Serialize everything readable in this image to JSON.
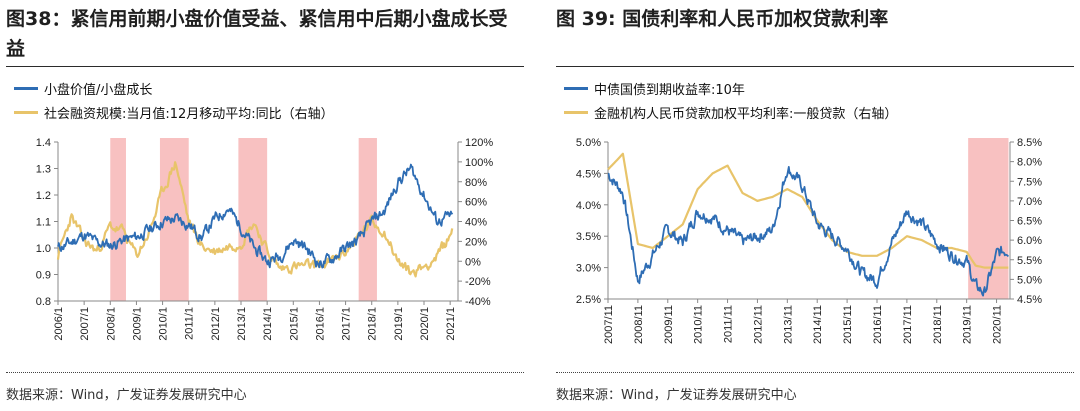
{
  "left": {
    "title": "图38：紧信用前期小盘价值受益、紧信用中后期小盘成长受益",
    "source": "数据来源：Wind，广发证券发展研究中心",
    "chart_data": {
      "type": "line",
      "legend": [
        {
          "name": "小盘价值/小盘成长",
          "color": "#2e6db4"
        },
        {
          "name": "社会融资规模:当月值:12月移动平均:同比（右轴）",
          "color": "#e8c46a"
        }
      ],
      "xticks": [
        "2006/1",
        "2007/1",
        "2008/1",
        "2009/1",
        "2010/1",
        "2011/1",
        "2012/1",
        "2013/1",
        "2014/1",
        "2015/1",
        "2016/1",
        "2017/1",
        "2018/1",
        "2019/1",
        "2020/1",
        "2021/1"
      ],
      "ylim": [
        0.8,
        1.4
      ],
      "yticks": [
        "0.8",
        "0.9",
        "1.0",
        "1.1",
        "1.2",
        "1.3",
        "1.4"
      ],
      "y2lim": [
        -40,
        120
      ],
      "y2ticks": [
        "-40%",
        "-20%",
        "0%",
        "20%",
        "40%",
        "60%",
        "80%",
        "100%",
        "120%"
      ],
      "shade": [
        [
          2008.0,
          2008.6
        ],
        [
          2009.9,
          2011.0
        ],
        [
          2012.9,
          2014.0
        ],
        [
          2017.5,
          2018.2
        ]
      ],
      "x": [
        2006,
        2006.5,
        2007,
        2007.5,
        2008,
        2008.5,
        2009,
        2009.5,
        2010,
        2010.5,
        2011,
        2011.5,
        2012,
        2012.5,
        2013,
        2013.5,
        2014,
        2014.5,
        2015,
        2015.5,
        2016,
        2016.5,
        2017,
        2017.5,
        2018,
        2018.5,
        2019,
        2019.5,
        2020,
        2020.5,
        2021,
        2021.1
      ],
      "ratio": [
        1.0,
        1.02,
        1.05,
        1.02,
        1.01,
        1.03,
        1.04,
        1.07,
        1.1,
        1.11,
        1.09,
        1.04,
        1.11,
        1.15,
        1.08,
        1.0,
        0.95,
        0.97,
        1.03,
        1.0,
        0.94,
        0.96,
        1.0,
        1.03,
        1.1,
        1.14,
        1.25,
        1.3,
        1.2,
        1.1,
        1.12,
        1.11
      ],
      "tsf": [
        5,
        45,
        20,
        10,
        35,
        30,
        5,
        30,
        70,
        100,
        40,
        15,
        10,
        15,
        20,
        40,
        10,
        -8,
        -5,
        -5,
        -5,
        0,
        10,
        25,
        40,
        30,
        0,
        -12,
        -5,
        5,
        25,
        35
      ]
    }
  },
  "right": {
    "title": "图 39: 国债利率和人民币加权贷款利率",
    "source": "数据来源：Wind，广发证券发展研究中心",
    "chart_data": {
      "type": "line",
      "legend": [
        {
          "name": "中债国债到期收益率:10年",
          "color": "#2e6db4"
        },
        {
          "name": "金融机构人民币贷款加权平均利率:一般贷款（右轴）",
          "color": "#e8c46a"
        }
      ],
      "xticks": [
        "2007/11",
        "2008/11",
        "2009/11",
        "2010/11",
        "2011/11",
        "2012/11",
        "2013/11",
        "2014/11",
        "2015/11",
        "2016/11",
        "2017/11",
        "2018/11",
        "2019/11",
        "2020/11"
      ],
      "ylim": [
        2.5,
        5.0
      ],
      "yticks": [
        "2.5%",
        "3.0%",
        "3.5%",
        "4.0%",
        "4.5%",
        "5.0%"
      ],
      "y2lim": [
        4.5,
        8.5
      ],
      "y2ticks": [
        "4.5%",
        "5.0%",
        "5.5%",
        "6.0%",
        "6.5%",
        "7.0%",
        "7.5%",
        "8.0%",
        "8.5%"
      ],
      "shade": [
        [
          2019.85,
          2021.2
        ]
      ],
      "x": [
        2007.8,
        2008.3,
        2008.8,
        2009.3,
        2009.8,
        2010.3,
        2010.8,
        2011.3,
        2011.8,
        2012.3,
        2012.8,
        2013.3,
        2013.8,
        2014.3,
        2014.8,
        2015.3,
        2015.8,
        2016.3,
        2016.8,
        2017.3,
        2017.8,
        2018.3,
        2018.8,
        2019.3,
        2019.8,
        2020.1,
        2020.4,
        2020.8,
        2021.2
      ],
      "yield": [
        4.5,
        4.2,
        2.8,
        3.2,
        3.6,
        3.4,
        3.9,
        3.8,
        3.6,
        3.4,
        3.5,
        3.6,
        4.6,
        4.3,
        3.7,
        3.5,
        3.3,
        2.9,
        2.8,
        3.4,
        3.9,
        3.7,
        3.4,
        3.2,
        3.1,
        2.7,
        2.6,
        3.2,
        3.3
      ],
      "loan": [
        7.8,
        8.2,
        5.9,
        5.8,
        6.1,
        6.4,
        7.3,
        7.7,
        7.9,
        7.2,
        7.0,
        7.1,
        7.3,
        7.1,
        6.5,
        6.0,
        5.7,
        5.6,
        5.6,
        5.8,
        6.1,
        6.0,
        5.8,
        5.8,
        5.7,
        5.35,
        5.3,
        5.3,
        5.3
      ]
    }
  }
}
